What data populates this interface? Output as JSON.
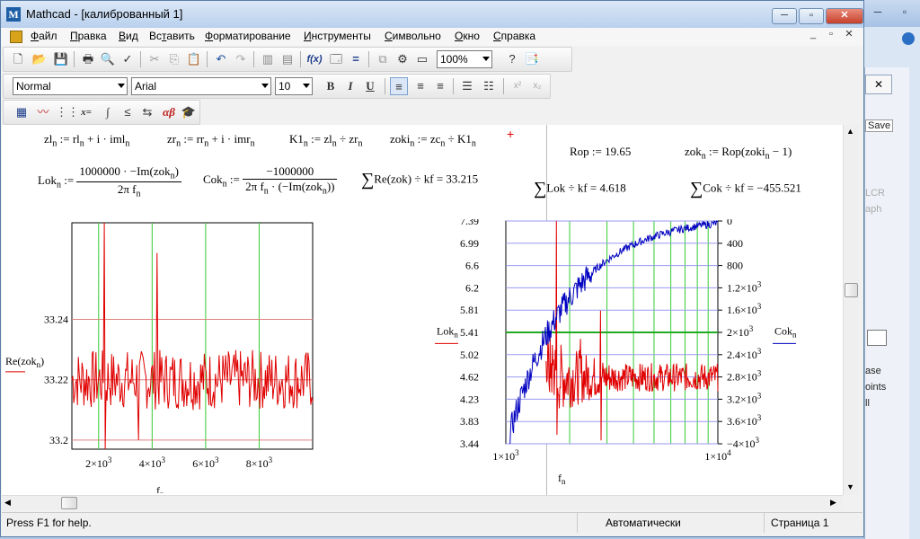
{
  "bgwindow": {
    "side_texts": [
      "Save",
      "LCR",
      "aph",
      "ase",
      "oints",
      "ll"
    ]
  },
  "window": {
    "title": "Mathcad - [калиброванный 1]",
    "app_logo": "M",
    "minimize": "─",
    "restore": "▫",
    "close": "✕",
    "doc_min": "_",
    "doc_restore": "▫",
    "doc_close": "✕"
  },
  "menu": [
    {
      "pre": "",
      "u": "Ф",
      "post": "айл"
    },
    {
      "pre": "",
      "u": "П",
      "post": "равка"
    },
    {
      "pre": "",
      "u": "В",
      "post": "ид"
    },
    {
      "pre": "Вс",
      "u": "т",
      "post": "авить"
    },
    {
      "pre": "",
      "u": "Ф",
      "post": "орматирование"
    },
    {
      "pre": "",
      "u": "И",
      "post": "нструменты"
    },
    {
      "pre": "",
      "u": "С",
      "post": "имвольно"
    },
    {
      "pre": "",
      "u": "О",
      "post": "кно"
    },
    {
      "pre": "",
      "u": "С",
      "post": "правка"
    }
  ],
  "toolbar": {
    "zoom": "100%",
    "style": "Normal",
    "font": "Arial",
    "size": "10",
    "bold": "B",
    "italic": "I",
    "underline": "U"
  },
  "math_toolbar": {
    "boolean": "x=",
    "greek": "αβ"
  },
  "equations": {
    "zl": {
      "lhs": "zl",
      "rhs": "rl",
      "imag": "iml",
      "sub": "n"
    },
    "zr": {
      "lhs": "zr",
      "rhs": "rr",
      "imag": "imr",
      "sub": "n"
    },
    "k1": {
      "lhs": "K1",
      "a": "zl",
      "b": "zr",
      "sub": "n"
    },
    "zoki": {
      "lhs": "zoki",
      "a": "zc",
      "b": "K1",
      "sub": "n"
    },
    "rop": "Rop := 19.65",
    "zok": {
      "lhs": "zok",
      "rhs": "Rop",
      "arg": "zoki",
      "sub": "n",
      "tail": "− 1"
    },
    "lok": {
      "lhs": "Lok",
      "num": "1000000 · −Im(zok",
      "den": "2π f",
      "sub": "n"
    },
    "cok": {
      "lhs": "Cok",
      "num": "−1000000",
      "den": "2π f",
      "den2": "· (−Im(zok",
      "sub": "n"
    },
    "sum_re": "Re(zok) ÷ kf = 33.215",
    "sum_lok": "Lok ÷ kf = 4.618",
    "sum_cok": "Cok ÷ kf = −455.521"
  },
  "chart_data": [
    {
      "type": "line",
      "y_axis_label": "Re(zok",
      "y_axis_sub": "n",
      "x_axis_label": "f",
      "x_axis_sub": "n",
      "ylim": [
        33.197,
        33.272
      ],
      "xlim": [
        1000,
        10000
      ],
      "y_ticks": [
        "33.24",
        "33.22",
        "33.2"
      ],
      "y_tick_values": [
        33.24,
        33.22,
        33.2
      ],
      "x_ticks": [
        "2×10",
        "4×10",
        "6×10",
        "8×10"
      ],
      "x_tick_sup": "3",
      "x_tick_values": [
        2000,
        4000,
        6000,
        8000
      ],
      "series": [
        {
          "color": "#e00000",
          "baseline": 33.22,
          "noise": 0.01,
          "spikes": [
            [
              2200,
              33.272
            ],
            [
              2250,
              33.197
            ],
            [
              3500,
              33.2
            ],
            [
              4200,
              33.262
            ]
          ]
        }
      ]
    },
    {
      "type": "line",
      "left_axis_label": "Lok",
      "left_axis_sub": "n",
      "right_axis_label": "Cok",
      "right_axis_sub": "n",
      "x_axis_label": "f",
      "x_axis_sub": "n",
      "x_scale": "log",
      "xlim": [
        1000,
        10000
      ],
      "left_ylim": [
        3.44,
        7.39
      ],
      "right_ylim": [
        -4000,
        0
      ],
      "left_ticks": [
        "7.39",
        "6.99",
        "6.6",
        "6.2",
        "5.81",
        "5.41",
        "5.02",
        "4.62",
        "4.23",
        "3.83",
        "3.44"
      ],
      "right_ticks": [
        "0",
        "400",
        "800",
        "1.2×10",
        "1.6×10",
        "2×10",
        "2.4×10",
        "2.8×10",
        "3.2×10",
        "3.6×10",
        "−4×10"
      ],
      "right_tick_sup": "3",
      "x_ticks": [
        "1×10",
        "1×10"
      ],
      "x_tick_sups": [
        "3",
        "4"
      ],
      "series": [
        {
          "name": "Lok",
          "color": "#e00000",
          "axis": "left"
        },
        {
          "name": "Cok",
          "color": "#0000c0",
          "axis": "right",
          "start": -3800,
          "end": -40
        }
      ]
    }
  ],
  "status": {
    "help": "Press F1 for help.",
    "mode": "Автоматически",
    "page": "Страница 1"
  }
}
